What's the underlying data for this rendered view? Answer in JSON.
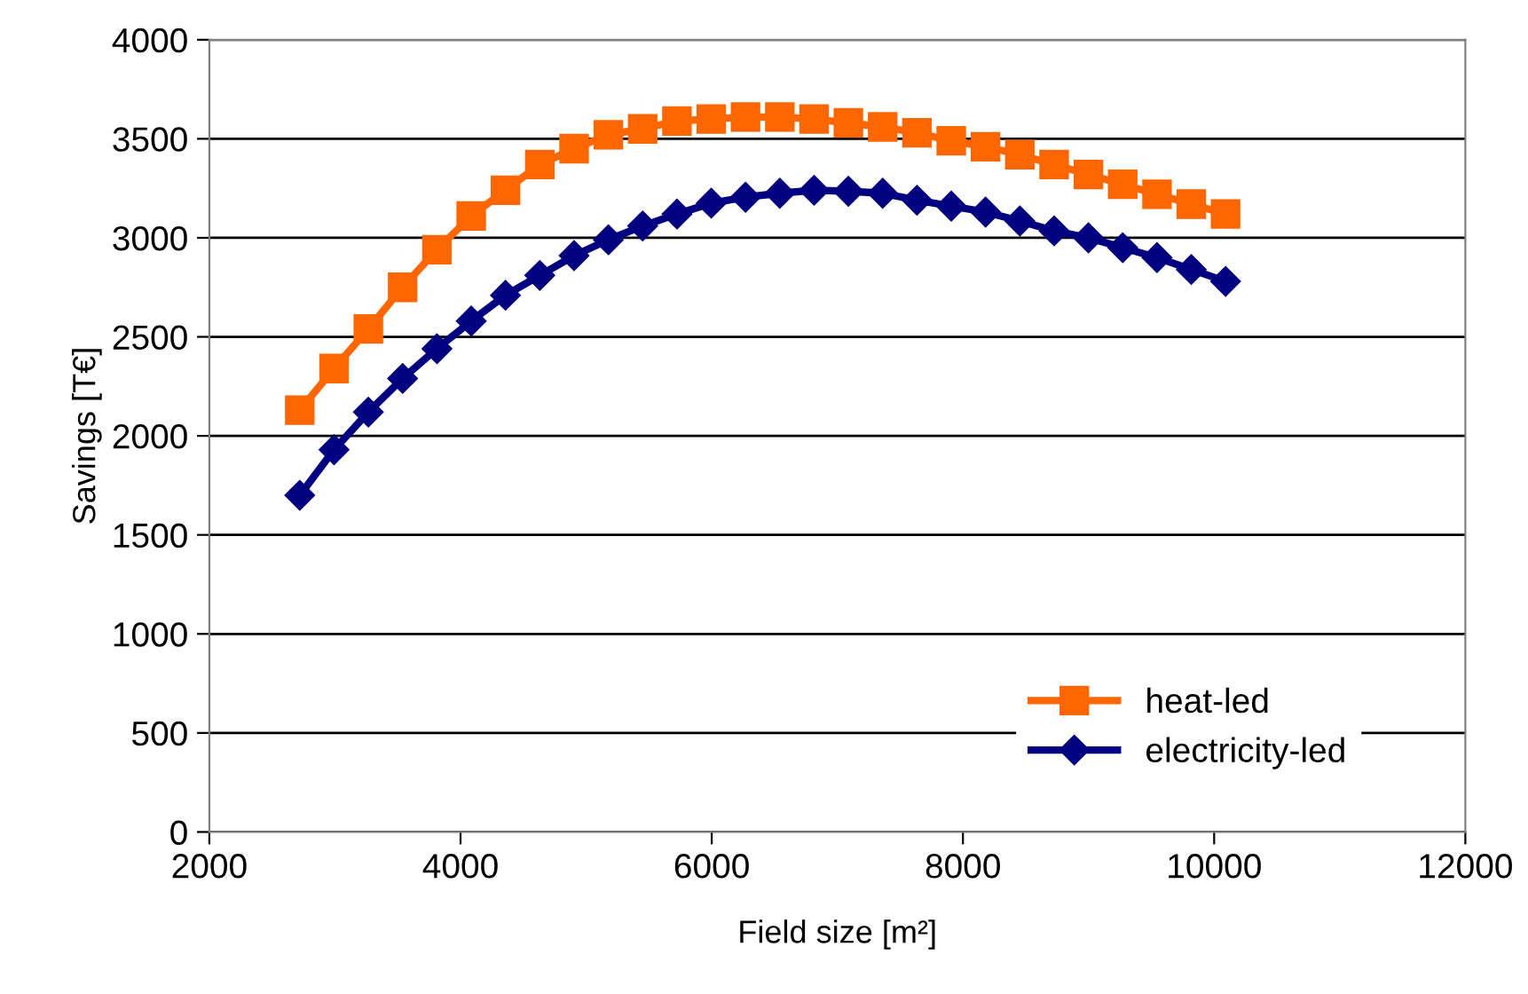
{
  "chart_data": {
    "type": "line",
    "xlabel": "Field size [m²]",
    "ylabel": "Savings [T€]",
    "x": [
      2720,
      2993,
      3266,
      3539,
      3812,
      4085,
      4358,
      4631,
      4904,
      5177,
      5450,
      5723,
      5996,
      6269,
      6542,
      6815,
      7088,
      7361,
      7634,
      7907,
      8180,
      8453,
      8726,
      8999,
      9272,
      9545,
      9818,
      10091
    ],
    "series": [
      {
        "name": "heat-led",
        "color": "#ff6600",
        "marker": "square",
        "values": [
          2130,
          2340,
          2540,
          2750,
          2940,
          3110,
          3240,
          3370,
          3450,
          3520,
          3550,
          3590,
          3600,
          3610,
          3610,
          3600,
          3580,
          3560,
          3530,
          3490,
          3460,
          3420,
          3370,
          3320,
          3270,
          3220,
          3170,
          3120
        ]
      },
      {
        "name": "electricity-led",
        "color": "#000080",
        "marker": "diamond",
        "values": [
          1700,
          1930,
          2120,
          2290,
          2440,
          2580,
          2710,
          2810,
          2910,
          2990,
          3060,
          3120,
          3175,
          3205,
          3225,
          3240,
          3235,
          3225,
          3190,
          3160,
          3130,
          3085,
          3035,
          3000,
          2950,
          2900,
          2840,
          2780
        ]
      }
    ],
    "xlim": [
      2000,
      12000
    ],
    "xticks": [
      2000,
      4000,
      6000,
      8000,
      10000,
      12000
    ],
    "ylim": [
      0,
      4000
    ],
    "yticks": [
      0,
      500,
      1000,
      1500,
      2000,
      2500,
      3000,
      3500,
      4000
    ],
    "grid": "y",
    "legend": "bottom right",
    "line_style": "solid"
  }
}
